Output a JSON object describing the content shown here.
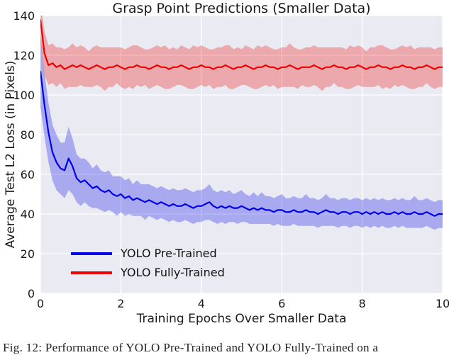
{
  "figure": {
    "title": "Grasp Point Predictions (Smaller Data)",
    "xlabel": "Training Epochs Over Smaller Data",
    "ylabel": "Average Test L2 Loss (in Pixels)"
  },
  "caption": {
    "text": "Fig. 12: Performance of YOLO Pre-Trained and YOLO Fully-Trained on a"
  },
  "colors": {
    "plot_background": "#EAEAF2",
    "grid": "#FFFFFF",
    "text": "#1a1a1a"
  },
  "chart_data": {
    "type": "line",
    "title": "Grasp Point Predictions (Smaller Data)",
    "xlabel": "Training Epochs Over Smaller Data",
    "ylabel": "Average Test L2 Loss (in Pixels)",
    "xlim": [
      0,
      10
    ],
    "ylim": [
      0,
      140
    ],
    "x_ticks": [
      0,
      2,
      4,
      6,
      8,
      10
    ],
    "y_ticks": [
      0,
      20,
      40,
      60,
      80,
      100,
      120,
      140
    ],
    "grid": true,
    "legend_position": "lower left",
    "x": {
      "start": 0,
      "step": 0.1,
      "count": 101
    },
    "series": [
      {
        "name": "YOLO Pre-Trained",
        "color": "#0000ee",
        "band_color": "#0000ee",
        "band_opacity": 0.28,
        "mean": [
          112,
          95,
          81,
          71,
          66,
          63,
          62,
          68,
          64,
          58,
          56,
          57,
          55,
          53,
          54,
          52,
          51,
          52,
          50,
          49,
          50,
          48,
          49,
          47,
          48,
          47,
          46,
          47,
          46,
          45,
          46,
          45,
          44,
          45,
          44,
          44,
          45,
          44,
          43,
          44,
          44,
          45,
          46,
          44,
          43,
          44,
          43,
          44,
          43,
          43,
          44,
          43,
          42,
          43,
          42,
          43,
          42,
          42,
          41,
          42,
          42,
          41,
          41,
          42,
          41,
          41,
          42,
          41,
          41,
          40,
          41,
          42,
          41,
          41,
          40,
          41,
          41,
          40,
          41,
          41,
          40,
          41,
          40,
          41,
          40,
          41,
          40,
          40,
          41,
          40,
          41,
          40,
          40,
          41,
          40,
          40,
          41,
          40,
          39,
          40,
          40
        ],
        "band_half_width": [
          18,
          16,
          15,
          14,
          14,
          13,
          14,
          16,
          14,
          12,
          12,
          11,
          11,
          10,
          11,
          10,
          10,
          10,
          9,
          10,
          9,
          9,
          9,
          8,
          9,
          8,
          9,
          8,
          8,
          8,
          8,
          8,
          8,
          8,
          8,
          8,
          8,
          8,
          8,
          8,
          8,
          8,
          9,
          8,
          8,
          8,
          8,
          8,
          7,
          8,
          8,
          7,
          7,
          8,
          7,
          8,
          7,
          7,
          7,
          7,
          8,
          7,
          7,
          7,
          7,
          7,
          8,
          7,
          7,
          7,
          7,
          8,
          7,
          7,
          7,
          7,
          7,
          7,
          7,
          7,
          7,
          7,
          7,
          7,
          7,
          7,
          7,
          7,
          7,
          7,
          7,
          7,
          7,
          8,
          7,
          7,
          7,
          7,
          7,
          7,
          7
        ]
      },
      {
        "name": "YOLO Fully-Trained",
        "color": "#ee0000",
        "band_color": "#ee0000",
        "band_opacity": 0.28,
        "mean": [
          138,
          121,
          115,
          116,
          114,
          115,
          113,
          114,
          115,
          114,
          115,
          114,
          113,
          114,
          115,
          114,
          113,
          114,
          114,
          115,
          114,
          113,
          114,
          114,
          115,
          114,
          114,
          113,
          114,
          115,
          114,
          114,
          113,
          114,
          114,
          115,
          114,
          113,
          114,
          114,
          115,
          114,
          114,
          113,
          114,
          114,
          115,
          114,
          113,
          114,
          114,
          115,
          114,
          113,
          114,
          114,
          115,
          114,
          114,
          113,
          114,
          114,
          115,
          114,
          113,
          114,
          114,
          114,
          115,
          114,
          113,
          114,
          114,
          115,
          114,
          114,
          113,
          114,
          114,
          115,
          114,
          113,
          114,
          114,
          115,
          114,
          114,
          113,
          114,
          114,
          115,
          114,
          114,
          113,
          114,
          114,
          115,
          114,
          113,
          114,
          114
        ],
        "band_half_width": [
          10,
          11,
          10,
          10,
          10,
          9,
          10,
          10,
          11,
          10,
          10,
          10,
          9,
          10,
          10,
          10,
          11,
          10,
          10,
          9,
          10,
          10,
          10,
          11,
          10,
          10,
          9,
          10,
          10,
          10,
          10,
          11,
          10,
          10,
          9,
          10,
          10,
          10,
          11,
          10,
          10,
          10,
          9,
          10,
          10,
          10,
          10,
          11,
          10,
          10,
          9,
          10,
          10,
          10,
          11,
          10,
          10,
          10,
          9,
          10,
          10,
          10,
          11,
          10,
          10,
          9,
          10,
          10,
          10,
          10,
          11,
          10,
          10,
          9,
          10,
          10,
          10,
          11,
          10,
          10,
          10,
          9,
          10,
          10,
          10,
          11,
          10,
          10,
          9,
          10,
          10,
          10,
          11,
          10,
          10,
          10,
          9,
          10,
          10,
          10,
          10
        ]
      }
    ]
  }
}
